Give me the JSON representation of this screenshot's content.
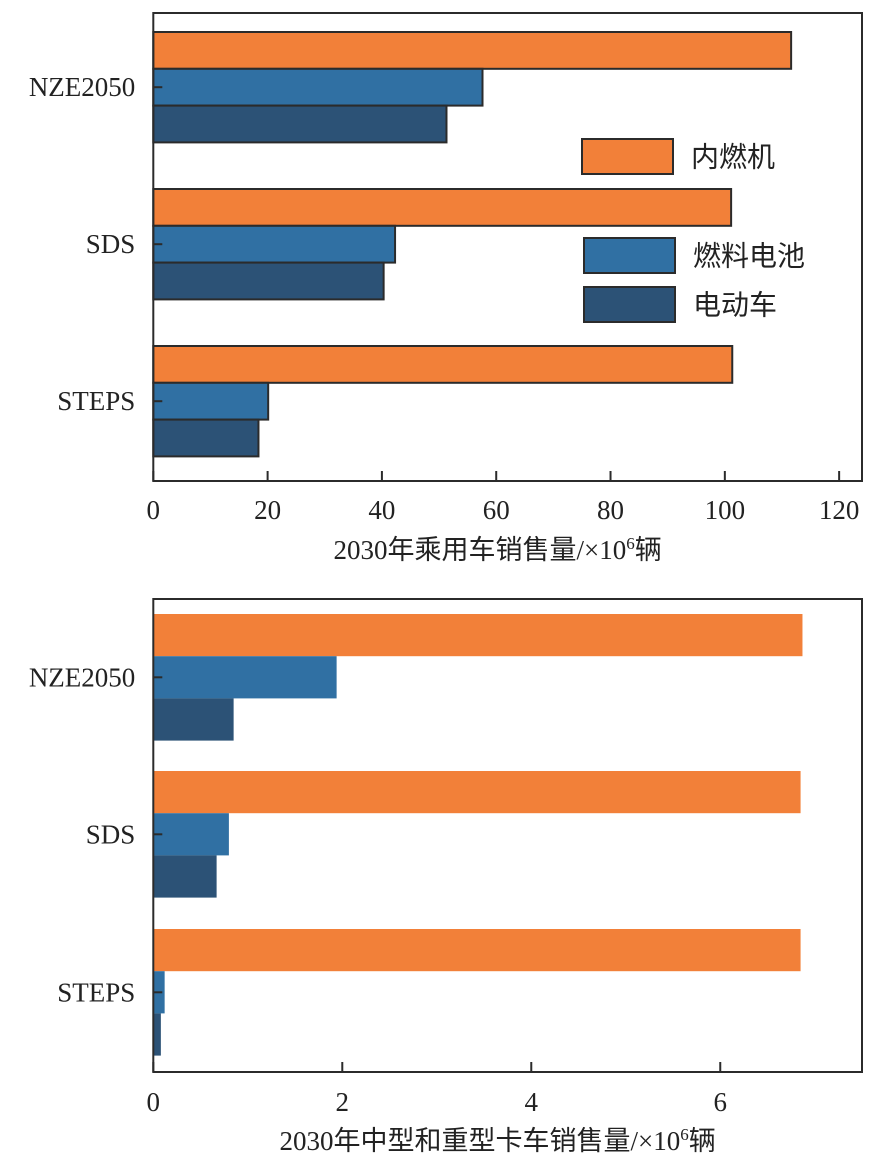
{
  "colors": {
    "ice": "#f28039",
    "fuel_cell": "#3070a3",
    "electric": "#2c5276",
    "bar_edge": "#2b2b2b"
  },
  "chart_data": [
    {
      "type": "bar",
      "orientation": "horizontal",
      "title": "",
      "xlabel": "2030年乘用车销售量/×10⁶辆",
      "ylabel": "",
      "categories": [
        "NZE2050",
        "SDS",
        "STEPS"
      ],
      "series": [
        {
          "name": "内燃机",
          "key": "ice",
          "values": [
            111.6,
            101.1,
            101.3
          ]
        },
        {
          "name": "燃料电池",
          "key": "fuel_cell",
          "values": [
            57.6,
            42.3,
            20.1
          ]
        },
        {
          "name": "电动车",
          "key": "electric",
          "values": [
            51.3,
            40.3,
            18.4
          ]
        }
      ],
      "xlim": [
        0,
        124
      ],
      "xticks": [
        0,
        20,
        40,
        60,
        80,
        100,
        120
      ],
      "grid": false,
      "legend": {
        "placement": "center-right",
        "entries": [
          "内燃机",
          "燃料电池",
          "电动车"
        ]
      },
      "bar_edges": true
    },
    {
      "type": "bar",
      "orientation": "horizontal",
      "title": "",
      "xlabel": "2030年中型和重型卡车销售量/×10⁶辆",
      "ylabel": "",
      "categories": [
        "NZE2050",
        "SDS",
        "STEPS"
      ],
      "series": [
        {
          "name": "内燃机",
          "key": "ice",
          "values": [
            6.87,
            6.85,
            6.85
          ]
        },
        {
          "name": "燃料电池",
          "key": "fuel_cell",
          "values": [
            1.94,
            0.8,
            0.12
          ]
        },
        {
          "name": "电动车",
          "key": "electric",
          "values": [
            0.85,
            0.67,
            0.08
          ]
        }
      ],
      "xlim": [
        0,
        7.5
      ],
      "xticks": [
        0,
        2,
        4,
        6
      ],
      "grid": false,
      "legend": null,
      "bar_edges": false
    }
  ]
}
